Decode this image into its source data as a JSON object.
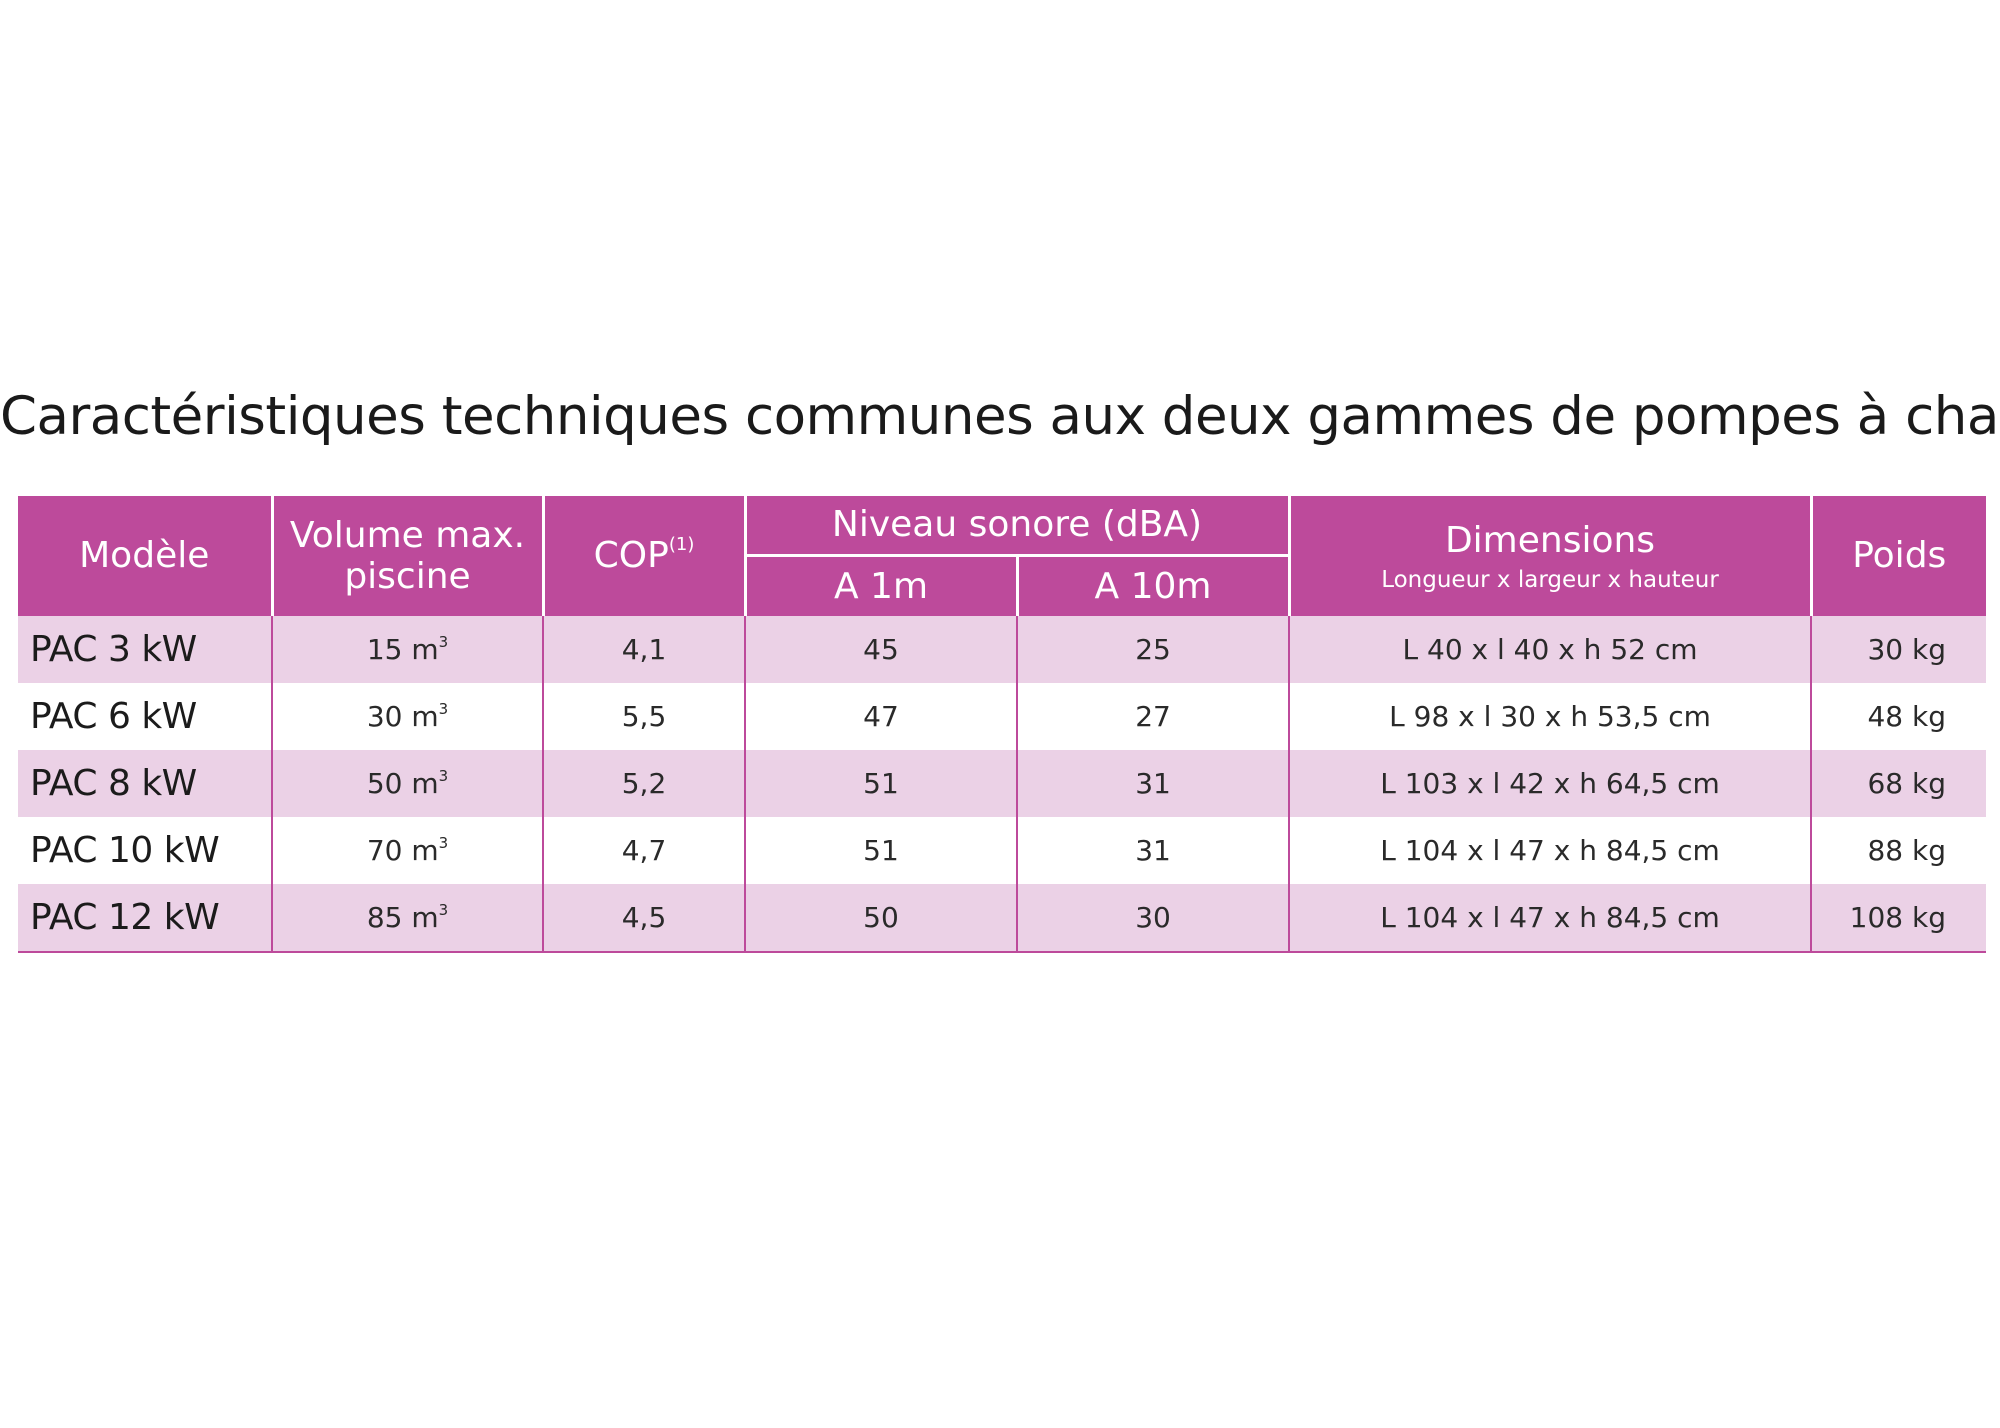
{
  "title": "Caractéristiques techniques communes aux deux gammes de pompes à chaleur",
  "colors": {
    "header_bg": "#bd4a9b",
    "row_alt_bg": "#ebd1e6",
    "row_plain_bg": "#ffffff",
    "header_text": "#ffffff"
  },
  "table": {
    "headers": {
      "model": "Modèle",
      "volume_line1": "Volume max.",
      "volume_line2": "piscine",
      "cop": "COP",
      "cop_note": "(1)",
      "noise_group": "Niveau sonore (dBA)",
      "noise_1m": "A 1m",
      "noise_10m": "A 10m",
      "dimensions": "Dimensions",
      "dimensions_sub": "Longueur x largeur x hauteur",
      "weight": "Poids"
    },
    "volume_unit_sup": "3",
    "rows": [
      {
        "model": "PAC 3 kW",
        "volume": "15 m",
        "cop": "4,1",
        "noise_1m": "45",
        "noise_10m": "25",
        "dimensions": "L 40 x l 40 x h 52 cm",
        "weight": "30 kg"
      },
      {
        "model": "PAC 6 kW",
        "volume": "30 m",
        "cop": "5,5",
        "noise_1m": "47",
        "noise_10m": "27",
        "dimensions": "L 98 x l 30 x h 53,5 cm",
        "weight": "48 kg"
      },
      {
        "model": "PAC 8 kW",
        "volume": "50 m",
        "cop": "5,2",
        "noise_1m": "51",
        "noise_10m": "31",
        "dimensions": "L 103 x l 42 x h 64,5 cm",
        "weight": "68 kg"
      },
      {
        "model": "PAC 10 kW",
        "volume": "70 m",
        "cop": "4,7",
        "noise_1m": "51",
        "noise_10m": "31",
        "dimensions": "L 104 x l 47 x h 84,5 cm",
        "weight": "88 kg"
      },
      {
        "model": "PAC 12 kW",
        "volume": "85 m",
        "cop": "4,5",
        "noise_1m": "50",
        "noise_10m": "30",
        "dimensions": "L 104 x l 47 x h 84,5 cm",
        "weight": "108 kg"
      }
    ]
  }
}
